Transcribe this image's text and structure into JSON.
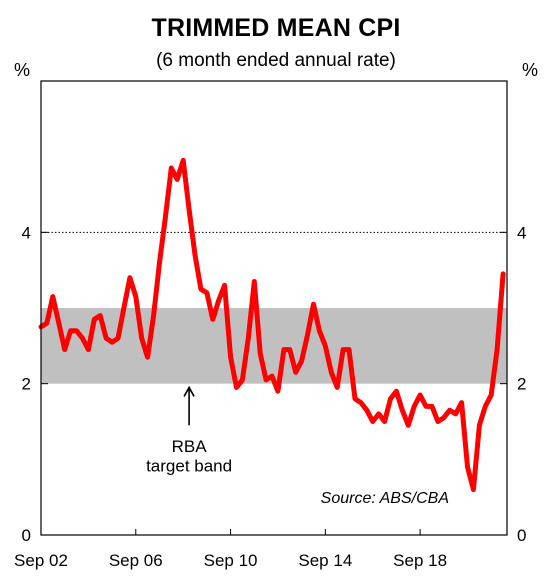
{
  "chart_data": {
    "type": "line",
    "title": "TRIMMED MEAN CPI",
    "subtitle": "(6 month ended annual rate)",
    "ylabel_left": "%",
    "ylabel_right": "%",
    "ylim": [
      0,
      6
    ],
    "y_ticks": [
      "0",
      "2",
      "4"
    ],
    "x_tick_labels": [
      "Sep 02",
      "Sep 06",
      "Sep 10",
      "Sep 14",
      "Sep 18"
    ],
    "x_range": [
      "Sep 02",
      "Mar 22"
    ],
    "reference_line": {
      "value": 4,
      "style": "dotted"
    },
    "band": {
      "low": 2,
      "high": 3,
      "label": [
        "RBA",
        "target band"
      ],
      "color": "#c0c0c0"
    },
    "source": "Source: ABS/CBA",
    "series": [
      {
        "color": "#ff0000",
        "values": [
          [
            "Sep 02",
            2.75
          ],
          [
            "Dec 02",
            2.8
          ],
          [
            "Mar 03",
            3.15
          ],
          [
            "Jun 03",
            2.8
          ],
          [
            "Sep 03",
            2.45
          ],
          [
            "Dec 03",
            2.7
          ],
          [
            "Mar 04",
            2.7
          ],
          [
            "Jun 04",
            2.6
          ],
          [
            "Sep 04",
            2.45
          ],
          [
            "Dec 04",
            2.85
          ],
          [
            "Mar 05",
            2.9
          ],
          [
            "Jun 05",
            2.6
          ],
          [
            "Sep 05",
            2.55
          ],
          [
            "Dec 05",
            2.6
          ],
          [
            "Mar 06",
            3.0
          ],
          [
            "Jun 06",
            3.4
          ],
          [
            "Sep 06",
            3.15
          ],
          [
            "Dec 06",
            2.6
          ],
          [
            "Mar 07",
            2.35
          ],
          [
            "Jun 07",
            2.9
          ],
          [
            "Sep 07",
            3.6
          ],
          [
            "Dec 07",
            4.2
          ],
          [
            "Mar 08",
            4.85
          ],
          [
            "Jun 08",
            4.7
          ],
          [
            "Sep 08",
            4.95
          ],
          [
            "Dec 08",
            4.3
          ],
          [
            "Mar 09",
            3.7
          ],
          [
            "Jun 09",
            3.25
          ],
          [
            "Sep 09",
            3.2
          ],
          [
            "Dec 09",
            2.85
          ],
          [
            "Mar 10",
            3.1
          ],
          [
            "Jun 10",
            3.3
          ],
          [
            "Sep 10",
            2.35
          ],
          [
            "Dec 10",
            1.95
          ],
          [
            "Mar 11",
            2.05
          ],
          [
            "Jun 11",
            2.6
          ],
          [
            "Sep 11",
            3.35
          ],
          [
            "Dec 11",
            2.4
          ],
          [
            "Mar 12",
            2.05
          ],
          [
            "Jun 12",
            2.1
          ],
          [
            "Sep 12",
            1.9
          ],
          [
            "Dec 12",
            2.45
          ],
          [
            "Mar 13",
            2.45
          ],
          [
            "Jun 13",
            2.15
          ],
          [
            "Sep 13",
            2.3
          ],
          [
            "Dec 13",
            2.65
          ],
          [
            "Mar 14",
            3.05
          ],
          [
            "Jun 14",
            2.7
          ],
          [
            "Sep 14",
            2.5
          ],
          [
            "Dec 14",
            2.15
          ],
          [
            "Mar 15",
            1.95
          ],
          [
            "Jun 15",
            2.45
          ],
          [
            "Sep 15",
            2.45
          ],
          [
            "Dec 15",
            1.8
          ],
          [
            "Mar 16",
            1.75
          ],
          [
            "Jun 16",
            1.65
          ],
          [
            "Sep 16",
            1.5
          ],
          [
            "Dec 16",
            1.6
          ],
          [
            "Mar 17",
            1.5
          ],
          [
            "Jun 17",
            1.8
          ],
          [
            "Sep 17",
            1.9
          ],
          [
            "Dec 17",
            1.65
          ],
          [
            "Mar 18",
            1.45
          ],
          [
            "Jun 18",
            1.7
          ],
          [
            "Sep 18",
            1.85
          ],
          [
            "Dec 18",
            1.7
          ],
          [
            "Mar 19",
            1.7
          ],
          [
            "Jun 19",
            1.5
          ],
          [
            "Sep 19",
            1.55
          ],
          [
            "Dec 19",
            1.65
          ],
          [
            "Mar 20",
            1.6
          ],
          [
            "Jun 20",
            1.75
          ],
          [
            "Sep 20",
            0.9
          ],
          [
            "Dec 20",
            0.6
          ],
          [
            "Mar 21",
            1.45
          ],
          [
            "Jun 21",
            1.7
          ],
          [
            "Sep 21",
            1.85
          ],
          [
            "Dec 21",
            2.45
          ],
          [
            "Mar 22",
            3.45
          ]
        ]
      }
    ]
  }
}
